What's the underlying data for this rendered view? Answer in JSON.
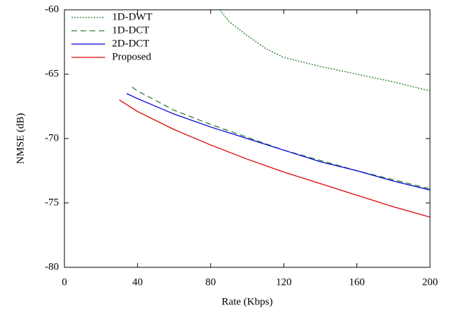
{
  "chart_data": {
    "type": "line",
    "xlabel": "Rate (Kbps)",
    "ylabel": "NMSE (dB)",
    "xlim": [
      0,
      200
    ],
    "ylim": [
      -80,
      -60
    ],
    "xticks": [
      0,
      40,
      80,
      120,
      160,
      200
    ],
    "yticks": [
      -80,
      -75,
      -70,
      -65,
      -60
    ],
    "legend": "upper-left",
    "series": [
      {
        "name": "1D-DWT",
        "color": "#1a7a1a",
        "style": "dotted",
        "x": [
          85,
          90,
          100,
          110,
          120,
          140,
          160,
          180,
          200
        ],
        "values": [
          -60,
          -60.9,
          -62,
          -63,
          -63.7,
          -64.4,
          -65,
          -65.6,
          -66.3
        ]
      },
      {
        "name": "1D-DCT",
        "color": "#2e7d32",
        "style": "dashed",
        "x": [
          37,
          40,
          60,
          80,
          100,
          120,
          140,
          160,
          180,
          200
        ],
        "values": [
          -66,
          -66.3,
          -67.8,
          -68.9,
          -69.9,
          -70.9,
          -71.7,
          -72.5,
          -73.2,
          -73.9
        ]
      },
      {
        "name": "2D-DCT",
        "color": "#0000dd",
        "style": "solid",
        "x": [
          34,
          40,
          60,
          80,
          100,
          120,
          140,
          160,
          180,
          200
        ],
        "values": [
          -66.5,
          -66.9,
          -68.1,
          -69.1,
          -70.0,
          -70.9,
          -71.8,
          -72.5,
          -73.3,
          -74.0
        ]
      },
      {
        "name": "Proposed",
        "color": "#e00000",
        "style": "solid",
        "x": [
          30,
          40,
          60,
          80,
          100,
          120,
          140,
          160,
          180,
          200
        ],
        "values": [
          -67.0,
          -67.9,
          -69.3,
          -70.5,
          -71.6,
          -72.6,
          -73.5,
          -74.4,
          -75.3,
          -76.1
        ]
      }
    ]
  }
}
